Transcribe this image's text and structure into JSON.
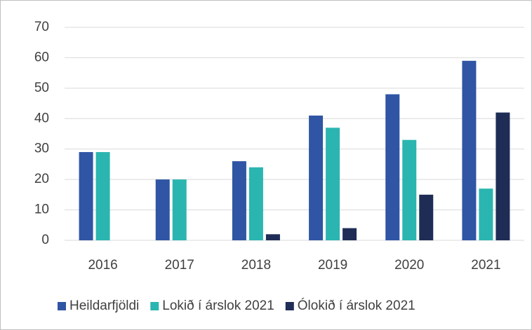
{
  "chart_data": {
    "type": "bar",
    "categories": [
      "2016",
      "2017",
      "2018",
      "2019",
      "2020",
      "2021"
    ],
    "series": [
      {
        "name": "Heildarfjöldi",
        "color": "#2f55a4",
        "values": [
          29,
          20,
          26,
          41,
          48,
          59
        ]
      },
      {
        "name": "Lokið í árslok 2021",
        "color": "#2bb5b0",
        "values": [
          29,
          20,
          24,
          37,
          33,
          17
        ]
      },
      {
        "name": "Ólokið í árslok 2021",
        "color": "#1f2d56",
        "values": [
          null,
          null,
          2,
          4,
          15,
          42
        ]
      }
    ],
    "ylim": [
      0,
      70
    ],
    "yticks": [
      0,
      10,
      20,
      30,
      40,
      50,
      60,
      70
    ],
    "grid": true,
    "legend": "bottom"
  }
}
